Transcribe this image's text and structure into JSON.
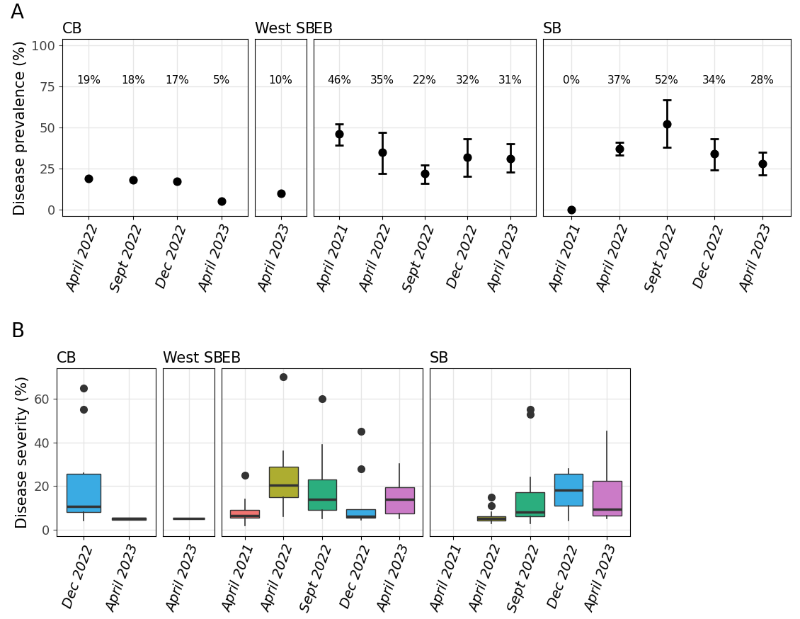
{
  "chart_data": [
    {
      "type": "scatter",
      "annotations": [
        "A"
      ],
      "title": "CB",
      "y_label": "Disease prevalence (%)",
      "categories": [
        "April 2022",
        "Sept 2022",
        "Dec 2022",
        "April 2023"
      ],
      "values": [
        19,
        18,
        17,
        5
      ],
      "value_labels": [
        "19%",
        "18%",
        "17%",
        "5%"
      ],
      "error_low": [
        null,
        null,
        null,
        null
      ],
      "error_high": [
        null,
        null,
        null,
        null
      ],
      "color": "#000000",
      "ylim": [
        -4,
        104
      ],
      "yticks": [
        0,
        25,
        50,
        75,
        100
      ],
      "grid": true
    },
    {
      "type": "scatter",
      "title": "West SB",
      "categories": [
        "April 2023"
      ],
      "values": [
        10
      ],
      "value_labels": [
        "10%"
      ],
      "error_low": [
        null
      ],
      "error_high": [
        null
      ],
      "color": "#000000",
      "ylim": [
        -4,
        104
      ],
      "yticks": [
        0,
        25,
        50,
        75,
        100
      ],
      "grid": true,
      "tick_labels": "x"
    },
    {
      "type": "scatter",
      "title": "EB",
      "categories": [
        "April 2021",
        "April 2022",
        "Sept 2022",
        "Dec 2022",
        "April 2023"
      ],
      "values": [
        46,
        35,
        22,
        32,
        31
      ],
      "value_labels": [
        "46%",
        "35%",
        "22%",
        "32%",
        "31%"
      ],
      "error_low": [
        39,
        22,
        16,
        20,
        23
      ],
      "error_high": [
        52,
        47,
        27,
        43,
        40
      ],
      "color": "#000000",
      "ylim": [
        -4,
        104
      ],
      "yticks": [
        0,
        25,
        50,
        75,
        100
      ],
      "grid": true,
      "tick_labels": "x"
    },
    {
      "type": "scatter",
      "title": "SB",
      "categories": [
        "April 2021",
        "April 2022",
        "Sept 2022",
        "Dec 2022",
        "April 2023"
      ],
      "values": [
        0,
        37,
        52,
        34,
        28
      ],
      "value_labels": [
        "0%",
        "37%",
        "52%",
        "34%",
        "28%"
      ],
      "error_low": [
        null,
        33,
        38,
        24,
        21
      ],
      "error_high": [
        null,
        41,
        67,
        43,
        35
      ],
      "color": "#000000",
      "ylim": [
        -4,
        104
      ],
      "yticks": [
        0,
        25,
        50,
        75,
        100
      ],
      "grid": true,
      "tick_labels": "x"
    },
    {
      "type": "box",
      "annotations": [
        "B"
      ],
      "title": "CB",
      "y_label": "Disease severity (%)",
      "categories": [
        "Dec 2022",
        "April 2023"
      ],
      "boxes": [
        {
          "whislo": 4,
          "q1": 8,
          "med": 10.5,
          "q3": 25.5,
          "whishi": 26,
          "fliers": [
            55,
            65
          ]
        },
        {
          "whislo": 4.5,
          "q1": 4.5,
          "med": 5,
          "q3": 5.5,
          "whishi": 5.5,
          "fliers": []
        }
      ],
      "colors": [
        "#3AABE3",
        "#CB7BC7"
      ],
      "ylim": [
        -3,
        74
      ],
      "yticks": [
        0,
        20,
        40,
        60
      ],
      "grid": true
    },
    {
      "type": "box",
      "title": "West SB",
      "categories": [
        "April 2023"
      ],
      "boxes": [
        {
          "whislo": 5,
          "q1": 5,
          "med": 5,
          "q3": 5,
          "whishi": 5,
          "fliers": []
        }
      ],
      "colors": [
        "#CB7BC7"
      ],
      "ylim": [
        -3,
        74
      ],
      "yticks": [
        0,
        20,
        40,
        60
      ],
      "grid": true,
      "tick_labels": "x"
    },
    {
      "type": "box",
      "title": "EB",
      "categories": [
        "April 2021",
        "April 2022",
        "Sept 2022",
        "Dec 2022",
        "April 2023"
      ],
      "boxes": [
        {
          "whislo": 2,
          "q1": 5.5,
          "med": 6.5,
          "q3": 9,
          "whishi": 14,
          "fliers": [
            25
          ]
        },
        {
          "whislo": 6,
          "q1": 15,
          "med": 20.5,
          "q3": 29,
          "whishi": 36,
          "fliers": [
            70
          ]
        },
        {
          "whislo": 5,
          "q1": 9,
          "med": 14,
          "q3": 23,
          "whishi": 39,
          "fliers": [
            60
          ]
        },
        {
          "whislo": 4.5,
          "q1": 5.5,
          "med": 6,
          "q3": 9.5,
          "whishi": 9.5,
          "fliers": [
            28,
            45
          ]
        },
        {
          "whislo": 5,
          "q1": 7.5,
          "med": 14,
          "q3": 19.5,
          "whishi": 30,
          "fliers": []
        }
      ],
      "colors": [
        "#F07470",
        "#ADAD30",
        "#2BAE7E",
        "#3AABE3",
        "#CB7BC7"
      ],
      "ylim": [
        -3,
        74
      ],
      "yticks": [
        0,
        20,
        40,
        60
      ],
      "grid": true,
      "tick_labels": "x"
    },
    {
      "type": "box",
      "title": "SB",
      "categories": [
        "April 2021",
        "April 2022",
        "Sept 2022",
        "Dec 2022",
        "April 2023"
      ],
      "boxes": [
        null,
        {
          "whislo": 3,
          "q1": 4,
          "med": 5,
          "q3": 6,
          "whishi": 8,
          "fliers": [
            11,
            15
          ]
        },
        {
          "whislo": 3,
          "q1": 6,
          "med": 8,
          "q3": 17,
          "whishi": 24,
          "fliers": [
            53,
            55
          ]
        },
        {
          "whislo": 4,
          "q1": 11,
          "med": 18,
          "q3": 25.5,
          "whishi": 28,
          "fliers": []
        },
        {
          "whislo": 5,
          "q1": 6.5,
          "med": 9.5,
          "q3": 22.5,
          "whishi": 45,
          "fliers": []
        }
      ],
      "colors": [
        "#F07470",
        "#ADAD30",
        "#2BAE7E",
        "#3AABE3",
        "#CB7BC7"
      ],
      "ylim": [
        -3,
        74
      ],
      "yticks": [
        0,
        20,
        40,
        60
      ],
      "grid": true,
      "tick_labels": "x"
    }
  ]
}
